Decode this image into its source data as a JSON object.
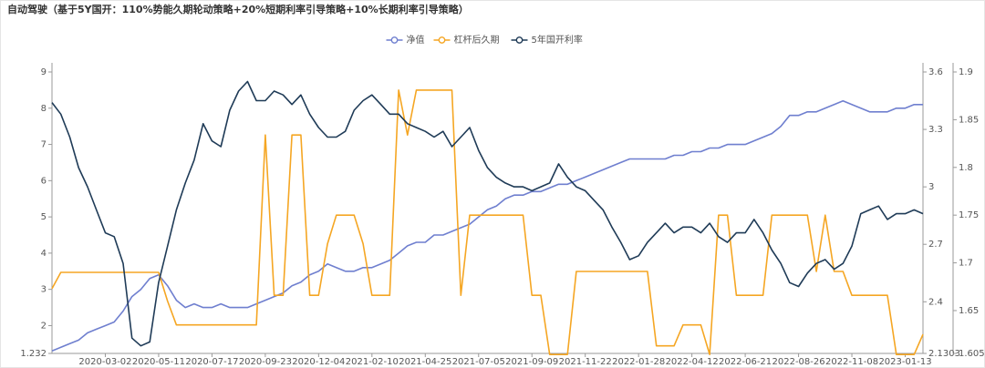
{
  "chart_data": {
    "type": "line",
    "title": "自动驾驶（基于5Y国开：110%势能久期轮动策略+20%短期利率引导策略+10%长期利率引导策略）",
    "categories": [
      null,
      null,
      null,
      null,
      null,
      null,
      "2020-03-02",
      null,
      null,
      null,
      null,
      null,
      "2020-05-11",
      null,
      null,
      null,
      null,
      null,
      "2020-07-17",
      null,
      null,
      null,
      null,
      null,
      "2020-09-23",
      null,
      null,
      null,
      null,
      null,
      "2020-12-04",
      null,
      null,
      null,
      null,
      null,
      "2021-02-10",
      null,
      null,
      null,
      null,
      null,
      "2021-04-25",
      null,
      null,
      null,
      null,
      null,
      "2021-07-05",
      null,
      null,
      null,
      null,
      null,
      "2021-09-09",
      null,
      null,
      null,
      null,
      null,
      "2021-11-22",
      null,
      null,
      null,
      null,
      null,
      "2022-01-28",
      null,
      null,
      null,
      null,
      null,
      "2022-04-12",
      null,
      null,
      null,
      null,
      null,
      "2022-06-21",
      null,
      null,
      null,
      null,
      null,
      "2022-08-26",
      null,
      null,
      null,
      null,
      null,
      "2022-11-08",
      null,
      null,
      null,
      null,
      null,
      "2023-01-13",
      null,
      null
    ],
    "series": [
      {
        "name": "净值",
        "color": "#6f7fcf",
        "axis": "y",
        "values": [
          1.3,
          1.4,
          1.5,
          1.6,
          1.8,
          1.9,
          2.0,
          2.1,
          2.4,
          2.8,
          3.0,
          3.3,
          3.4,
          3.1,
          2.7,
          2.5,
          2.6,
          2.5,
          2.5,
          2.6,
          2.5,
          2.5,
          2.5,
          2.6,
          2.7,
          2.8,
          2.9,
          3.1,
          3.2,
          3.4,
          3.5,
          3.7,
          3.6,
          3.5,
          3.5,
          3.6,
          3.6,
          3.7,
          3.8,
          4.0,
          4.2,
          4.3,
          4.3,
          4.5,
          4.5,
          4.6,
          4.7,
          4.8,
          5.0,
          5.2,
          5.3,
          5.5,
          5.6,
          5.6,
          5.7,
          5.7,
          5.8,
          5.9,
          5.9,
          6.0,
          6.1,
          6.2,
          6.3,
          6.4,
          6.5,
          6.6,
          6.6,
          6.6,
          6.6,
          6.6,
          6.7,
          6.7,
          6.8,
          6.8,
          6.9,
          6.9,
          7.0,
          7.0,
          7.0,
          7.1,
          7.2,
          7.3,
          7.5,
          7.8,
          7.8,
          7.9,
          7.9,
          8.0,
          8.1,
          8.2,
          8.1,
          8.0,
          7.9,
          7.9,
          7.9,
          8.0,
          8.0,
          8.1,
          8.1
        ]
      },
      {
        "name": "杠杆后久期",
        "color": "#f5a623",
        "axis": "y3",
        "values": [
          1.673,
          1.69,
          1.69,
          1.69,
          1.69,
          1.69,
          1.69,
          1.69,
          1.69,
          1.69,
          1.69,
          1.69,
          1.69,
          1.66,
          1.635,
          1.635,
          1.635,
          1.635,
          1.635,
          1.635,
          1.635,
          1.635,
          1.635,
          1.635,
          1.834,
          1.666,
          1.666,
          1.834,
          1.834,
          1.666,
          1.666,
          1.72,
          1.75,
          1.75,
          1.75,
          1.72,
          1.666,
          1.666,
          1.666,
          1.881,
          1.834,
          1.881,
          1.881,
          1.881,
          1.881,
          1.881,
          1.666,
          1.75,
          1.75,
          1.75,
          1.75,
          1.75,
          1.75,
          1.75,
          1.666,
          1.666,
          1.604,
          1.604,
          1.604,
          1.691,
          1.691,
          1.691,
          1.691,
          1.691,
          1.691,
          1.691,
          1.691,
          1.691,
          1.613,
          1.613,
          1.613,
          1.635,
          1.635,
          1.635,
          1.604,
          1.75,
          1.75,
          1.666,
          1.666,
          1.666,
          1.666,
          1.75,
          1.75,
          1.75,
          1.75,
          1.75,
          1.691,
          1.75,
          1.691,
          1.691,
          1.666,
          1.666,
          1.666,
          1.666,
          1.666,
          1.604,
          1.604,
          1.604,
          1.625
        ]
      },
      {
        "name": "5年国开利率",
        "color": "#1f3b57",
        "axis": "y2",
        "values": [
          3.44,
          3.38,
          3.26,
          3.1,
          3.0,
          2.88,
          2.76,
          2.74,
          2.6,
          2.21,
          2.17,
          2.19,
          2.5,
          2.69,
          2.88,
          3.02,
          3.14,
          3.33,
          3.24,
          3.21,
          3.4,
          3.5,
          3.55,
          3.45,
          3.45,
          3.5,
          3.48,
          3.43,
          3.48,
          3.38,
          3.31,
          3.26,
          3.26,
          3.29,
          3.4,
          3.45,
          3.48,
          3.43,
          3.38,
          3.38,
          3.33,
          3.31,
          3.29,
          3.26,
          3.29,
          3.21,
          3.26,
          3.31,
          3.19,
          3.1,
          3.05,
          3.02,
          3.0,
          3.0,
          2.98,
          3.0,
          3.02,
          3.12,
          3.05,
          3.0,
          2.98,
          2.93,
          2.88,
          2.79,
          2.71,
          2.62,
          2.64,
          2.71,
          2.76,
          2.81,
          2.76,
          2.79,
          2.79,
          2.76,
          2.81,
          2.74,
          2.71,
          2.76,
          2.76,
          2.83,
          2.76,
          2.67,
          2.6,
          2.5,
          2.48,
          2.55,
          2.6,
          2.62,
          2.57,
          2.6,
          2.69,
          2.86,
          2.88,
          2.9,
          2.83,
          2.86,
          2.86,
          2.88,
          2.86
        ]
      }
    ],
    "ylim": [
      1.232,
      9
    ],
    "yticks": [
      1.232,
      2,
      3,
      4,
      5,
      6,
      7,
      8,
      9
    ],
    "y2lim": [
      2.1303,
      3.6
    ],
    "y2ticks": [
      2.1303,
      2.4,
      2.7,
      3,
      3.3,
      3.6
    ],
    "y3lim": [
      1.6051,
      1.9
    ],
    "y3ticks": [
      1.6051,
      1.65,
      1.7,
      1.75,
      1.8,
      1.85,
      1.9
    ],
    "legend": "top"
  }
}
